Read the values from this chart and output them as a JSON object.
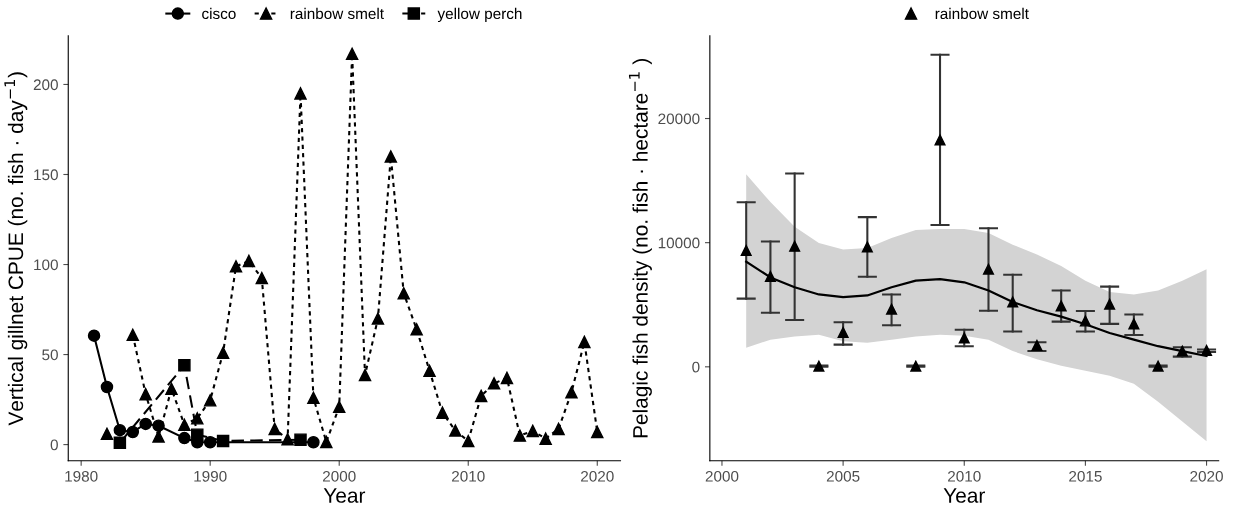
{
  "chart_data": [
    {
      "type": "line",
      "xlabel": "Year",
      "ylabel": "Vertical gillnet CPUE (no. fish · day$^{−1}$)",
      "legend": "top",
      "grid": false,
      "xlim": [
        1979,
        2021.8
      ],
      "xticks": [
        1980,
        1990,
        2000,
        2010,
        2020
      ],
      "ylim": [
        -9,
        227
      ],
      "yticks": [
        0,
        50,
        100,
        150,
        200
      ],
      "series": [
        {
          "name": "cisco",
          "color": "#000000",
          "marker": "circle",
          "line_style": "solid",
          "x": [
            1981,
            1982,
            1983,
            1984,
            1985,
            1986,
            1988,
            1989,
            1990,
            1998
          ],
          "values": [
            60.5,
            32,
            8,
            7,
            11.5,
            10.5,
            3.6,
            1.3,
            1.3,
            1.3
          ]
        },
        {
          "name": "rainbow smelt",
          "color": "#000000",
          "marker": "triangle",
          "line_style": "dotted",
          "x": [
            1982,
            1983,
            1984,
            1985,
            1986,
            1987,
            1988,
            1989,
            1990,
            1991,
            1992,
            1993,
            1994,
            1995,
            1996,
            1997,
            1998,
            1999,
            2000,
            2001,
            2002,
            2003,
            2004,
            2005,
            2006,
            2007,
            2008,
            2009,
            2010,
            2011,
            2012,
            2013,
            2014,
            2015,
            2016,
            2017,
            2018,
            2019,
            2020
          ],
          "values": [
            6,
            null,
            61,
            28,
            4.5,
            31,
            11,
            14.6,
            24.6,
            51,
            99,
            102,
            92.5,
            8.7,
            3,
            195,
            26,
            1.5,
            21,
            217,
            38.6,
            70,
            160,
            84,
            64,
            41,
            17.7,
            7.8,
            2,
            27,
            34,
            37,
            5,
            7.6,
            3.3,
            8.7,
            29,
            57,
            7
          ]
        },
        {
          "name": "yellow perch",
          "color": "#000000",
          "marker": "square",
          "line_style": "dashed",
          "x": [
            1983,
            1988,
            1989,
            1991,
            1997
          ],
          "values": [
            1,
            44,
            5.5,
            2,
            2.7
          ]
        }
      ]
    },
    {
      "type": "scatter",
      "xlabel": "Year",
      "ylabel": "Pelagic fish density (no. fish · hectare$^{−1}$ )",
      "legend": "top",
      "grid": false,
      "xlim": [
        1999.5,
        2020.5
      ],
      "xticks": [
        2000,
        2005,
        2010,
        2015,
        2020
      ],
      "ylim": [
        -7570,
        26660
      ],
      "yticks": [
        0,
        10000,
        20000
      ],
      "series": [
        {
          "name": "rainbow smelt",
          "color": "#000000",
          "marker": "triangle",
          "x": [
            2001,
            2002,
            2003,
            2004,
            2005,
            2006,
            2007,
            2008,
            2009,
            2010,
            2011,
            2012,
            2013,
            2014,
            2015,
            2016,
            2017,
            2018,
            2019,
            2020
          ],
          "values": [
            9370,
            7280,
            9710,
            50,
            2770,
            9660,
            4640,
            50,
            18280,
            2320,
            7860,
            5220,
            1720,
            4910,
            3690,
            5040,
            3460,
            50,
            1270,
            1320
          ],
          "errors": [
            [
              5490,
              13250
            ],
            [
              4350,
              10100
            ],
            [
              3770,
              15570
            ],
            [
              0,
              100
            ],
            [
              1790,
              3590
            ],
            [
              7260,
              12060
            ],
            [
              3350,
              5830
            ],
            [
              0,
              100
            ],
            [
              11420,
              25140
            ],
            [
              1660,
              2980
            ],
            [
              4510,
              11160
            ],
            [
              2850,
              7410
            ],
            [
              1270,
              1980
            ],
            [
              3640,
              6150
            ],
            [
              2850,
              4490
            ],
            [
              3460,
              6460
            ],
            [
              2560,
              4220
            ],
            [
              0,
              100
            ],
            [
              820,
              1580
            ],
            [
              1200,
              1400
            ]
          ]
        },
        {
          "type": "line",
          "color": "#000000",
          "marker": "none",
          "line_style": "solid",
          "x": [
            2001,
            2002,
            2003,
            2004,
            2005,
            2006,
            2007,
            2008,
            2009,
            2010,
            2011,
            2012,
            2013,
            2014,
            2015,
            2016,
            2017,
            2018,
            2019,
            2020
          ],
          "values": [
            8470,
            7200,
            6410,
            5830,
            5620,
            5750,
            6410,
            6940,
            7070,
            6810,
            6150,
            5220,
            4560,
            4040,
            3430,
            2720,
            2190,
            1660,
            1270,
            870
          ],
          "upper": [
            15510,
            13270,
            11290,
            9970,
            9450,
            9580,
            10370,
            11030,
            11110,
            11110,
            10770,
            9840,
            9050,
            8130,
            6940,
            6020,
            5830,
            6150,
            6940,
            7860
          ],
          "lower": [
            1530,
            2190,
            2450,
            2590,
            2060,
            1930,
            2190,
            2450,
            2590,
            2510,
            2190,
            1270,
            610,
            80,
            -320,
            -710,
            -1370,
            -2820,
            -4410,
            -5990
          ]
        }
      ]
    }
  ]
}
